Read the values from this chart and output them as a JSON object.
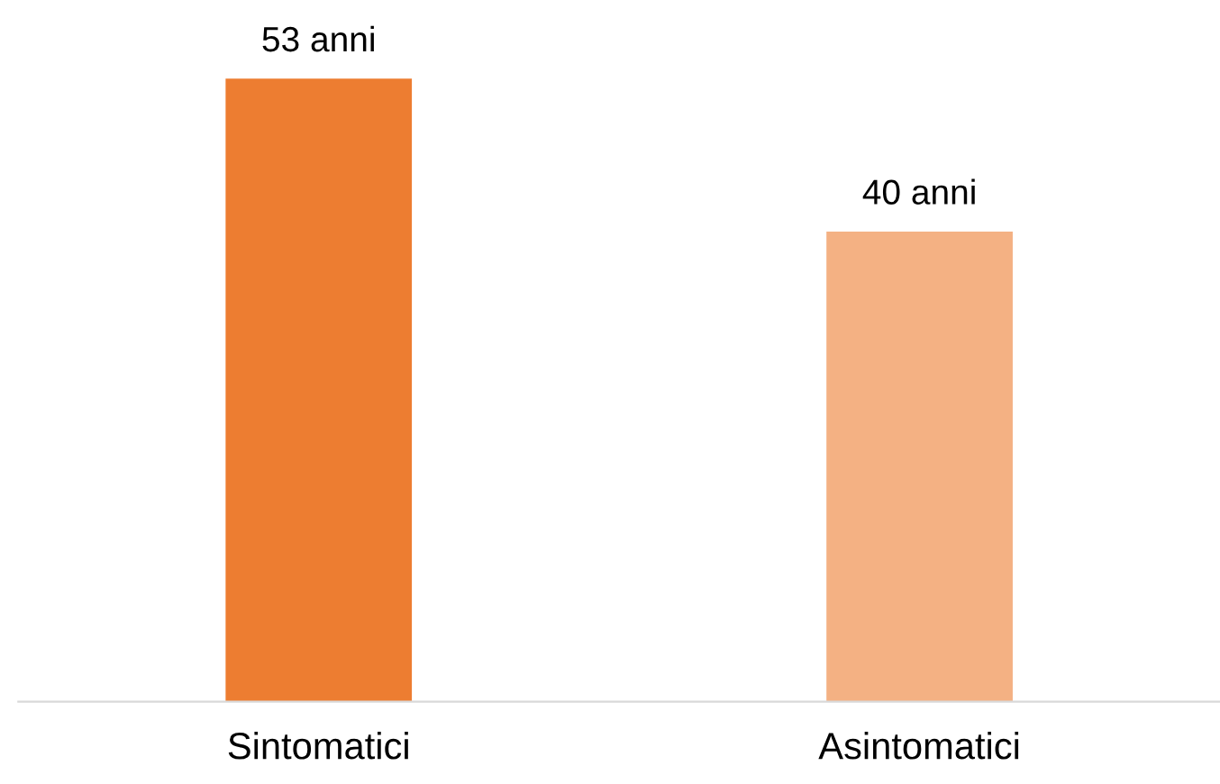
{
  "chart_data": {
    "type": "bar",
    "categories": [
      "Sintomatici",
      "Asintomatici"
    ],
    "values": [
      53,
      40
    ],
    "colors": [
      "#ed7d31",
      "#f4b183"
    ],
    "value_labels": [
      "53 anni",
      "40 anni"
    ],
    "grid": false,
    "legend": false,
    "tick_labels": "x"
  }
}
